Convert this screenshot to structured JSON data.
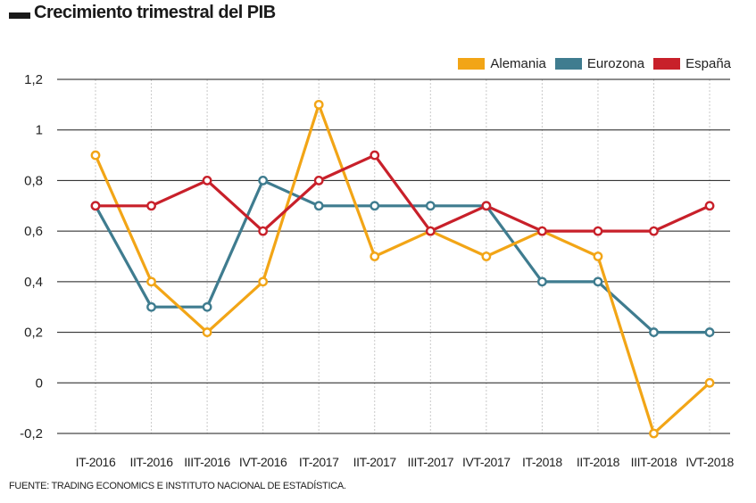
{
  "title": "Crecimiento trimestral del PIB",
  "source": "FUENTE: TRADING ECONOMICS E INSTITUTO NACIONAL DE ESTADÍSTICA.",
  "chart_data": {
    "type": "line",
    "title": "Crecimiento trimestral del PIB",
    "xlabel": "",
    "ylabel": "",
    "categories": [
      "IT-2016",
      "IIT-2016",
      "IIIT-2016",
      "IVT-2016",
      "IT-2017",
      "IIT-2017",
      "IIIT-2017",
      "IVT-2017",
      "IT-2018",
      "IIT-2018",
      "IIIT-2018",
      "IVT-2018"
    ],
    "ylim": [
      -0.2,
      1.2
    ],
    "yticks": [
      -0.2,
      0,
      0.2,
      0.4,
      0.6,
      0.8,
      1,
      1.2
    ],
    "ytick_labels": [
      "-0,2",
      "0",
      "0,2",
      "0,4",
      "0,6",
      "0,8",
      "1",
      "1,2"
    ],
    "grid": true,
    "legend_position": "top-right",
    "series": [
      {
        "name": "Alemania",
        "color": "#f2a516",
        "values": [
          0.9,
          0.4,
          0.2,
          0.4,
          1.1,
          0.5,
          0.6,
          0.5,
          0.6,
          0.5,
          -0.2,
          0.0
        ]
      },
      {
        "name": "Eurozona",
        "color": "#3f7c8f",
        "values": [
          0.7,
          0.3,
          0.3,
          0.8,
          0.7,
          0.7,
          0.7,
          0.7,
          0.4,
          0.4,
          0.2,
          0.2
        ]
      },
      {
        "name": "España",
        "color": "#c8202a",
        "values": [
          0.7,
          0.7,
          0.8,
          0.6,
          0.8,
          0.9,
          0.6,
          0.7,
          0.6,
          0.6,
          0.6,
          0.7
        ]
      }
    ]
  }
}
